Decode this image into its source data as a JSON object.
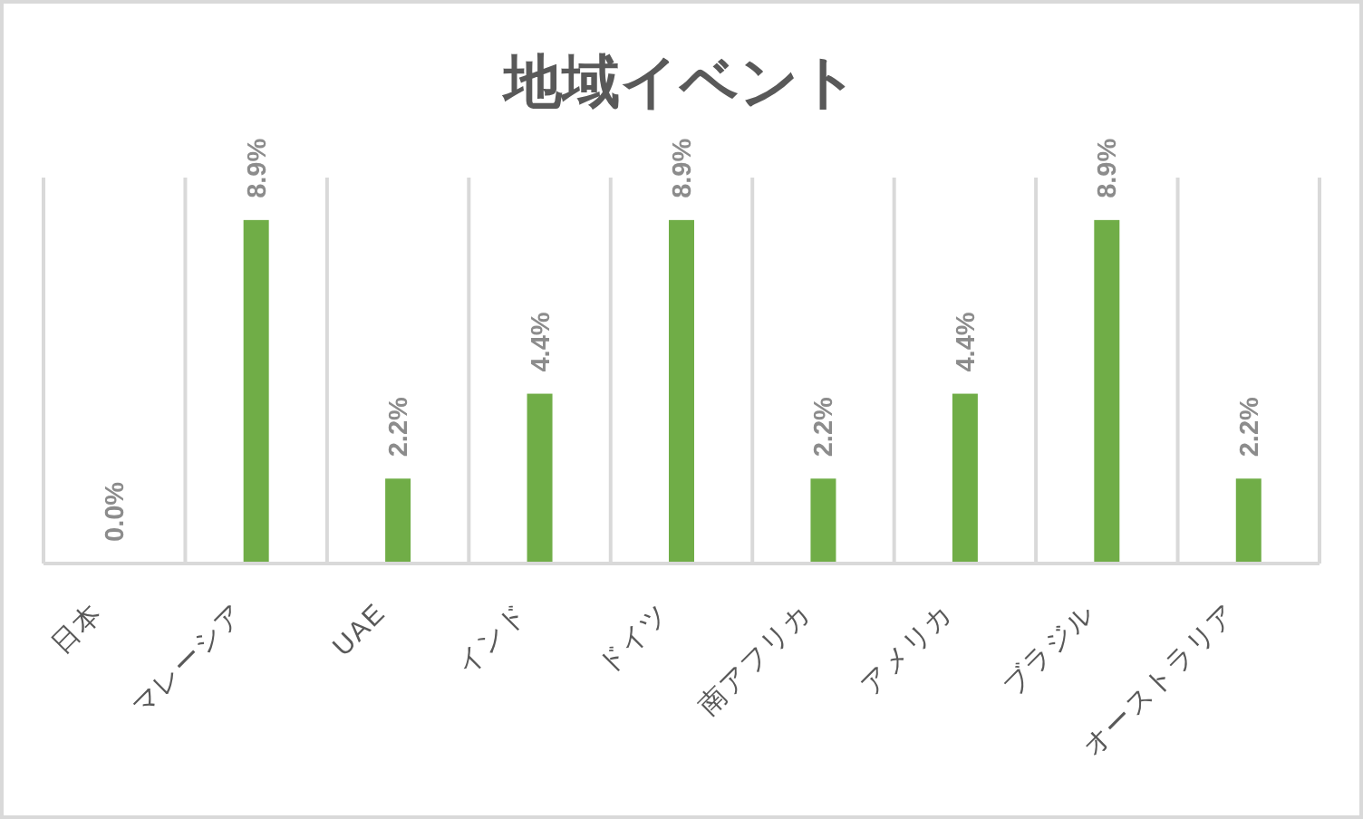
{
  "chart_data": {
    "type": "bar",
    "title": "地域イベント",
    "categories": [
      "日本",
      "マレーシア",
      "UAE",
      "インド",
      "ドイツ",
      "南アフリカ",
      "アメリカ",
      "ブラジル",
      "オーストラリア"
    ],
    "values": [
      0.0,
      8.9,
      2.2,
      4.4,
      8.9,
      2.2,
      4.4,
      8.9,
      2.2
    ],
    "value_labels": [
      "0.0%",
      "8.9%",
      "2.2%",
      "4.4%",
      "8.9%",
      "2.2%",
      "4.4%",
      "8.9%",
      "2.2%"
    ],
    "color": "#70ad47",
    "ylim": [
      0,
      10
    ],
    "grid": "x",
    "tick_labels": "x"
  }
}
